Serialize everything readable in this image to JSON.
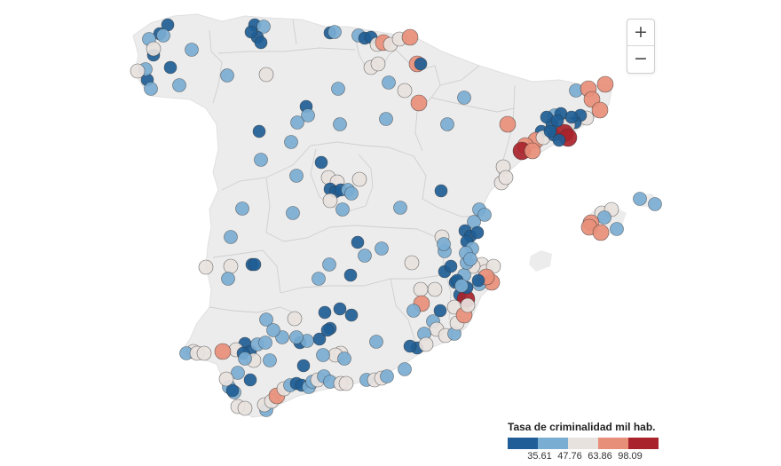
{
  "legend": {
    "title": "Tasa de criminalidad mil hab.",
    "ticks": [
      "35.61",
      "47.76",
      "63.86",
      "98.09"
    ],
    "colors": [
      "#1f5e96",
      "#7aadd2",
      "#e8e2de",
      "#e88f79",
      "#a8232b"
    ]
  },
  "zoom": {
    "in_label": "+",
    "out_label": "−"
  },
  "map_style": {
    "land": "#ececec",
    "border": "#cfcfcf",
    "dot_stroke": "#333333"
  },
  "markers": [
    [
      189,
      28,
      0
    ],
    [
      180,
      38,
      0
    ],
    [
      168,
      44,
      1
    ],
    [
      184,
      40,
      1
    ],
    [
      173,
      62,
      0
    ],
    [
      192,
      76,
      0
    ],
    [
      166,
      90,
      0
    ],
    [
      170,
      100,
      1
    ],
    [
      164,
      78,
      1
    ],
    [
      155,
      80,
      2
    ],
    [
      216,
      56,
      1
    ],
    [
      173,
      55,
      2
    ],
    [
      287,
      28,
      0
    ],
    [
      297,
      30,
      1
    ],
    [
      290,
      42,
      0
    ],
    [
      294,
      48,
      0
    ],
    [
      283,
      36,
      0
    ],
    [
      256,
      85,
      1
    ],
    [
      300,
      84,
      2
    ],
    [
      202,
      96,
      1
    ],
    [
      372,
      37,
      0
    ],
    [
      377,
      36,
      1
    ],
    [
      404,
      40,
      1
    ],
    [
      411,
      43,
      0
    ],
    [
      418,
      42,
      0
    ],
    [
      425,
      50,
      2
    ],
    [
      432,
      48,
      3
    ],
    [
      440,
      50,
      2
    ],
    [
      450,
      44,
      2
    ],
    [
      462,
      42,
      3
    ],
    [
      470,
      72,
      3
    ],
    [
      474,
      72,
      0
    ],
    [
      418,
      76,
      2
    ],
    [
      426,
      72,
      2
    ],
    [
      438,
      93,
      1
    ],
    [
      456,
      102,
      2
    ],
    [
      472,
      116,
      3
    ],
    [
      381,
      100,
      1
    ],
    [
      345,
      120,
      0
    ],
    [
      347,
      130,
      1
    ],
    [
      335,
      138,
      1
    ],
    [
      383,
      140,
      1
    ],
    [
      435,
      134,
      1
    ],
    [
      504,
      140,
      1
    ],
    [
      523,
      110,
      1
    ],
    [
      292,
      148,
      0
    ],
    [
      328,
      160,
      1
    ],
    [
      294,
      180,
      1
    ],
    [
      362,
      183,
      0
    ],
    [
      334,
      198,
      1
    ],
    [
      370,
      200,
      2
    ],
    [
      380,
      205,
      2
    ],
    [
      405,
      202,
      2
    ],
    [
      372,
      213,
      0
    ],
    [
      378,
      216,
      0
    ],
    [
      384,
      214,
      0
    ],
    [
      392,
      214,
      1
    ],
    [
      372,
      226,
      2
    ],
    [
      386,
      236,
      1
    ],
    [
      396,
      218,
      1
    ],
    [
      497,
      215,
      0
    ],
    [
      451,
      234,
      1
    ],
    [
      330,
      240,
      1
    ],
    [
      273,
      235,
      1
    ],
    [
      260,
      267,
      1
    ],
    [
      403,
      273,
      0
    ],
    [
      430,
      280,
      1
    ],
    [
      411,
      288,
      1
    ],
    [
      284,
      298,
      0
    ],
    [
      287,
      298,
      0
    ],
    [
      260,
      300,
      2
    ],
    [
      232,
      301,
      2
    ],
    [
      257,
      314,
      1
    ],
    [
      371,
      298,
      1
    ],
    [
      359,
      314,
      1
    ],
    [
      395,
      310,
      0
    ],
    [
      464,
      296,
      2
    ],
    [
      501,
      283,
      1
    ],
    [
      678,
      240,
      2
    ],
    [
      689,
      236,
      2
    ],
    [
      681,
      245,
      1
    ],
    [
      666,
      251,
      3
    ],
    [
      664,
      256,
      3
    ],
    [
      677,
      262,
      3
    ],
    [
      695,
      258,
      1
    ],
    [
      721,
      224,
      1
    ],
    [
      738,
      230,
      1
    ],
    [
      649,
      102,
      1
    ],
    [
      663,
      100,
      3
    ],
    [
      682,
      95,
      3
    ],
    [
      667,
      112,
      3
    ],
    [
      676,
      124,
      3
    ],
    [
      661,
      133,
      2
    ],
    [
      654,
      130,
      0
    ],
    [
      648,
      138,
      0
    ],
    [
      640,
      141,
      2
    ],
    [
      625,
      130,
      1
    ],
    [
      632,
      128,
      0
    ],
    [
      622,
      140,
      0
    ],
    [
      616,
      132,
      0
    ],
    [
      610,
      148,
      0
    ],
    [
      604,
      158,
      3
    ],
    [
      592,
      164,
      3
    ],
    [
      588,
      170,
      4
    ],
    [
      600,
      170,
      3
    ],
    [
      612,
      155,
      2
    ],
    [
      624,
      152,
      0
    ],
    [
      636,
      150,
      4
    ],
    [
      640,
      155,
      4
    ],
    [
      630,
      158,
      0
    ],
    [
      620,
      148,
      0
    ],
    [
      628,
      136,
      0
    ],
    [
      644,
      132,
      0
    ],
    [
      572,
      140,
      3
    ],
    [
      567,
      188,
      2
    ],
    [
      565,
      206,
      2
    ],
    [
      570,
      200,
      2
    ],
    [
      540,
      236,
      1
    ],
    [
      546,
      242,
      1
    ],
    [
      534,
      250,
      1
    ],
    [
      524,
      260,
      0
    ],
    [
      530,
      266,
      0
    ],
    [
      526,
      272,
      0
    ],
    [
      538,
      262,
      0
    ],
    [
      532,
      280,
      1
    ],
    [
      498,
      267,
      2
    ],
    [
      543,
      298,
      2
    ],
    [
      547,
      306,
      2
    ],
    [
      556,
      300,
      2
    ],
    [
      554,
      318,
      3
    ],
    [
      533,
      300,
      2
    ],
    [
      523,
      310,
      1
    ],
    [
      526,
      296,
      1
    ],
    [
      513,
      318,
      0
    ],
    [
      518,
      332,
      0
    ],
    [
      525,
      337,
      4
    ],
    [
      512,
      346,
      2
    ],
    [
      540,
      320,
      1
    ],
    [
      548,
      312,
      3
    ],
    [
      501,
      306,
      0
    ],
    [
      490,
      326,
      2
    ],
    [
      474,
      326,
      2
    ],
    [
      475,
      342,
      3
    ],
    [
      466,
      350,
      1
    ],
    [
      496,
      350,
      0
    ],
    [
      488,
      362,
      1
    ],
    [
      492,
      371,
      2
    ],
    [
      478,
      376,
      1
    ],
    [
      470,
      392,
      0
    ],
    [
      480,
      388,
      2
    ],
    [
      502,
      378,
      2
    ],
    [
      512,
      376,
      1
    ],
    [
      515,
      364,
      2
    ],
    [
      523,
      355,
      3
    ],
    [
      527,
      344,
      2
    ],
    [
      539,
      316,
      0
    ],
    [
      526,
      324,
      0
    ],
    [
      332,
      359,
      2
    ],
    [
      300,
      360,
      1
    ],
    [
      276,
      387,
      0
    ],
    [
      282,
      396,
      0
    ],
    [
      290,
      388,
      1
    ],
    [
      266,
      394,
      2
    ],
    [
      251,
      396,
      3
    ],
    [
      218,
      396,
      2
    ],
    [
      210,
      398,
      1
    ],
    [
      222,
      398,
      2
    ],
    [
      274,
      398,
      0
    ],
    [
      299,
      386,
      1
    ],
    [
      304,
      406,
      1
    ],
    [
      286,
      406,
      2
    ],
    [
      276,
      404,
      1
    ],
    [
      268,
      420,
      1
    ],
    [
      258,
      436,
      1
    ],
    [
      264,
      442,
      1
    ],
    [
      268,
      458,
      2
    ],
    [
      276,
      460,
      2
    ],
    [
      300,
      462,
      1
    ],
    [
      298,
      456,
      2
    ],
    [
      306,
      452,
      2
    ],
    [
      312,
      446,
      3
    ],
    [
      320,
      438,
      2
    ],
    [
      327,
      434,
      1
    ],
    [
      334,
      432,
      0
    ],
    [
      340,
      434,
      0
    ],
    [
      348,
      436,
      1
    ],
    [
      352,
      430,
      1
    ],
    [
      358,
      428,
      2
    ],
    [
      365,
      424,
      1
    ],
    [
      372,
      430,
      1
    ],
    [
      384,
      432,
      2
    ],
    [
      390,
      432,
      2
    ],
    [
      413,
      428,
      1
    ],
    [
      422,
      428,
      2
    ],
    [
      430,
      426,
      2
    ],
    [
      436,
      424,
      1
    ],
    [
      456,
      416,
      1
    ],
    [
      230,
      398,
      2
    ],
    [
      255,
      427,
      2
    ],
    [
      262,
      440,
      0
    ],
    [
      282,
      428,
      0
    ],
    [
      338,
      386,
      0
    ],
    [
      346,
      384,
      1
    ],
    [
      360,
      382,
      0
    ],
    [
      372,
      370,
      0
    ],
    [
      384,
      398,
      2
    ],
    [
      378,
      400,
      2
    ],
    [
      342,
      412,
      0
    ],
    [
      334,
      380,
      1
    ],
    [
      318,
      380,
      1
    ],
    [
      308,
      372,
      1
    ],
    [
      388,
      404,
      1
    ],
    [
      366,
      352,
      0
    ],
    [
      383,
      348,
      0
    ],
    [
      396,
      355,
      0
    ],
    [
      369,
      372,
      0
    ],
    [
      364,
      400,
      1
    ],
    [
      462,
      390,
      0
    ],
    [
      424,
      385,
      1
    ],
    [
      500,
      275,
      1
    ],
    [
      525,
      285,
      1
    ],
    [
      530,
      292,
      1
    ],
    [
      508,
      300,
      0
    ],
    [
      515,
      316,
      0
    ],
    [
      520,
      322,
      1
    ]
  ]
}
